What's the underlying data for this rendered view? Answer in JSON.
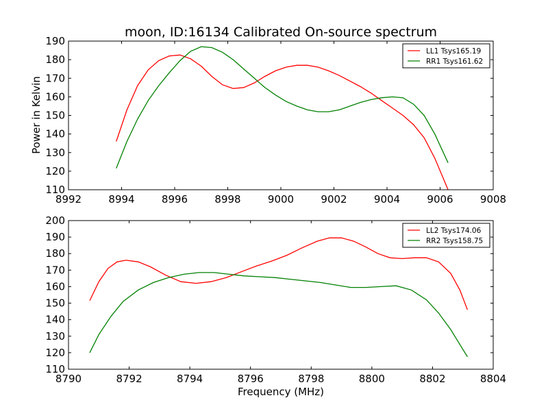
{
  "figure": {
    "title": "moon, ID:16134 Calibrated On-source spectrum",
    "ylabel": "Power in Kelvin",
    "xlabel": "Frequency (MHz)"
  },
  "chart_data": [
    {
      "type": "line",
      "title": "moon, ID:16134 Calibrated On-source spectrum",
      "xlabel": "",
      "ylabel": "Power in Kelvin",
      "xlim": [
        8992,
        9008
      ],
      "ylim": [
        110,
        190
      ],
      "xticks": [
        8992,
        8994,
        8996,
        8998,
        9000,
        9002,
        9004,
        9006,
        9008
      ],
      "yticks": [
        110,
        120,
        130,
        140,
        150,
        160,
        170,
        180,
        190
      ],
      "grid": false,
      "legend": "top-right",
      "series": [
        {
          "name": "LL1 Tsys165.19",
          "color": "#ff0000",
          "x": [
            8993.8,
            8994.2,
            8994.6,
            8995.0,
            8995.4,
            8995.8,
            8996.2,
            8996.6,
            8997.0,
            8997.4,
            8997.8,
            8998.2,
            8998.6,
            8999.0,
            8999.4,
            8999.8,
            9000.2,
            9000.6,
            9001.0,
            9001.4,
            9001.8,
            9002.2,
            9002.6,
            9003.0,
            9003.4,
            9003.8,
            9004.2,
            9004.6,
            9005.0,
            9005.4,
            9005.8,
            9006.3
          ],
          "y": [
            136,
            153,
            166,
            174.5,
            179.5,
            182,
            182.5,
            180.5,
            176.5,
            171,
            166.5,
            164.5,
            165,
            167.5,
            171,
            174,
            176,
            177,
            177,
            176,
            174,
            171.5,
            168.5,
            165.5,
            162,
            158,
            154,
            150,
            145,
            138,
            127,
            110
          ]
        },
        {
          "name": "RR1 Tsys161.62",
          "color": "#008000",
          "x": [
            8993.8,
            8994.2,
            8994.6,
            8995.0,
            8995.4,
            8995.8,
            8996.2,
            8996.6,
            8997.0,
            8997.4,
            8997.8,
            8998.2,
            8998.6,
            8999.0,
            8999.4,
            8999.8,
            9000.2,
            9000.6,
            9001.0,
            9001.4,
            9001.8,
            9002.2,
            9002.6,
            9003.0,
            9003.4,
            9003.8,
            9004.2,
            9004.6,
            9005.0,
            9005.4,
            9005.8,
            9006.3
          ],
          "y": [
            121.5,
            136,
            148,
            158,
            166,
            173,
            179.5,
            184.5,
            187,
            186.5,
            184,
            180,
            175,
            170,
            165,
            161,
            157.5,
            155,
            153,
            152,
            152,
            153,
            155,
            157,
            158.5,
            159.5,
            160,
            159.5,
            156,
            150,
            140,
            124.5
          ]
        }
      ]
    },
    {
      "type": "line",
      "title": "",
      "xlabel": "Frequency (MHz)",
      "ylabel": "",
      "xlim": [
        8790,
        8804
      ],
      "ylim": [
        110,
        200
      ],
      "xticks": [
        8790,
        8792,
        8794,
        8796,
        8798,
        8800,
        8802,
        8804
      ],
      "yticks": [
        110,
        120,
        130,
        140,
        150,
        160,
        170,
        180,
        190,
        200
      ],
      "grid": false,
      "legend": "top-right",
      "series": [
        {
          "name": "LL2 Tsys174.06",
          "color": "#ff0000",
          "x": [
            8790.7,
            8791.0,
            8791.3,
            8791.6,
            8791.9,
            8792.3,
            8792.7,
            8793.2,
            8793.7,
            8794.2,
            8794.7,
            8795.2,
            8795.7,
            8796.2,
            8796.7,
            8797.2,
            8797.7,
            8798.2,
            8798.6,
            8799.0,
            8799.4,
            8799.8,
            8800.2,
            8800.6,
            8801.0,
            8801.4,
            8801.8,
            8802.2,
            8802.6,
            8802.9,
            8803.15
          ],
          "y": [
            151.5,
            163,
            171,
            175,
            176,
            175,
            172,
            167,
            163,
            162,
            163,
            165.5,
            169,
            172.5,
            175.5,
            179,
            183.5,
            187.5,
            189.5,
            189.5,
            187.5,
            184,
            180,
            177.5,
            177,
            177.5,
            177.5,
            175,
            168,
            158,
            146
          ]
        },
        {
          "name": "RR2 Tsys158.75",
          "color": "#008000",
          "x": [
            8790.7,
            8791.0,
            8791.4,
            8791.8,
            8792.3,
            8792.8,
            8793.3,
            8793.8,
            8794.3,
            8794.8,
            8795.3,
            8795.8,
            8796.3,
            8796.8,
            8797.3,
            8797.8,
            8798.3,
            8798.8,
            8799.3,
            8799.8,
            8800.3,
            8800.8,
            8801.3,
            8801.8,
            8802.2,
            8802.6,
            8802.9,
            8803.15
          ],
          "y": [
            120,
            131,
            142,
            151,
            158,
            162.5,
            165.5,
            167.5,
            168.5,
            168.5,
            167.5,
            166.5,
            166,
            165.5,
            164.5,
            163.5,
            162.5,
            161,
            159.5,
            159.5,
            160,
            160.5,
            158,
            152,
            144,
            134,
            125,
            117.5
          ]
        }
      ]
    }
  ]
}
